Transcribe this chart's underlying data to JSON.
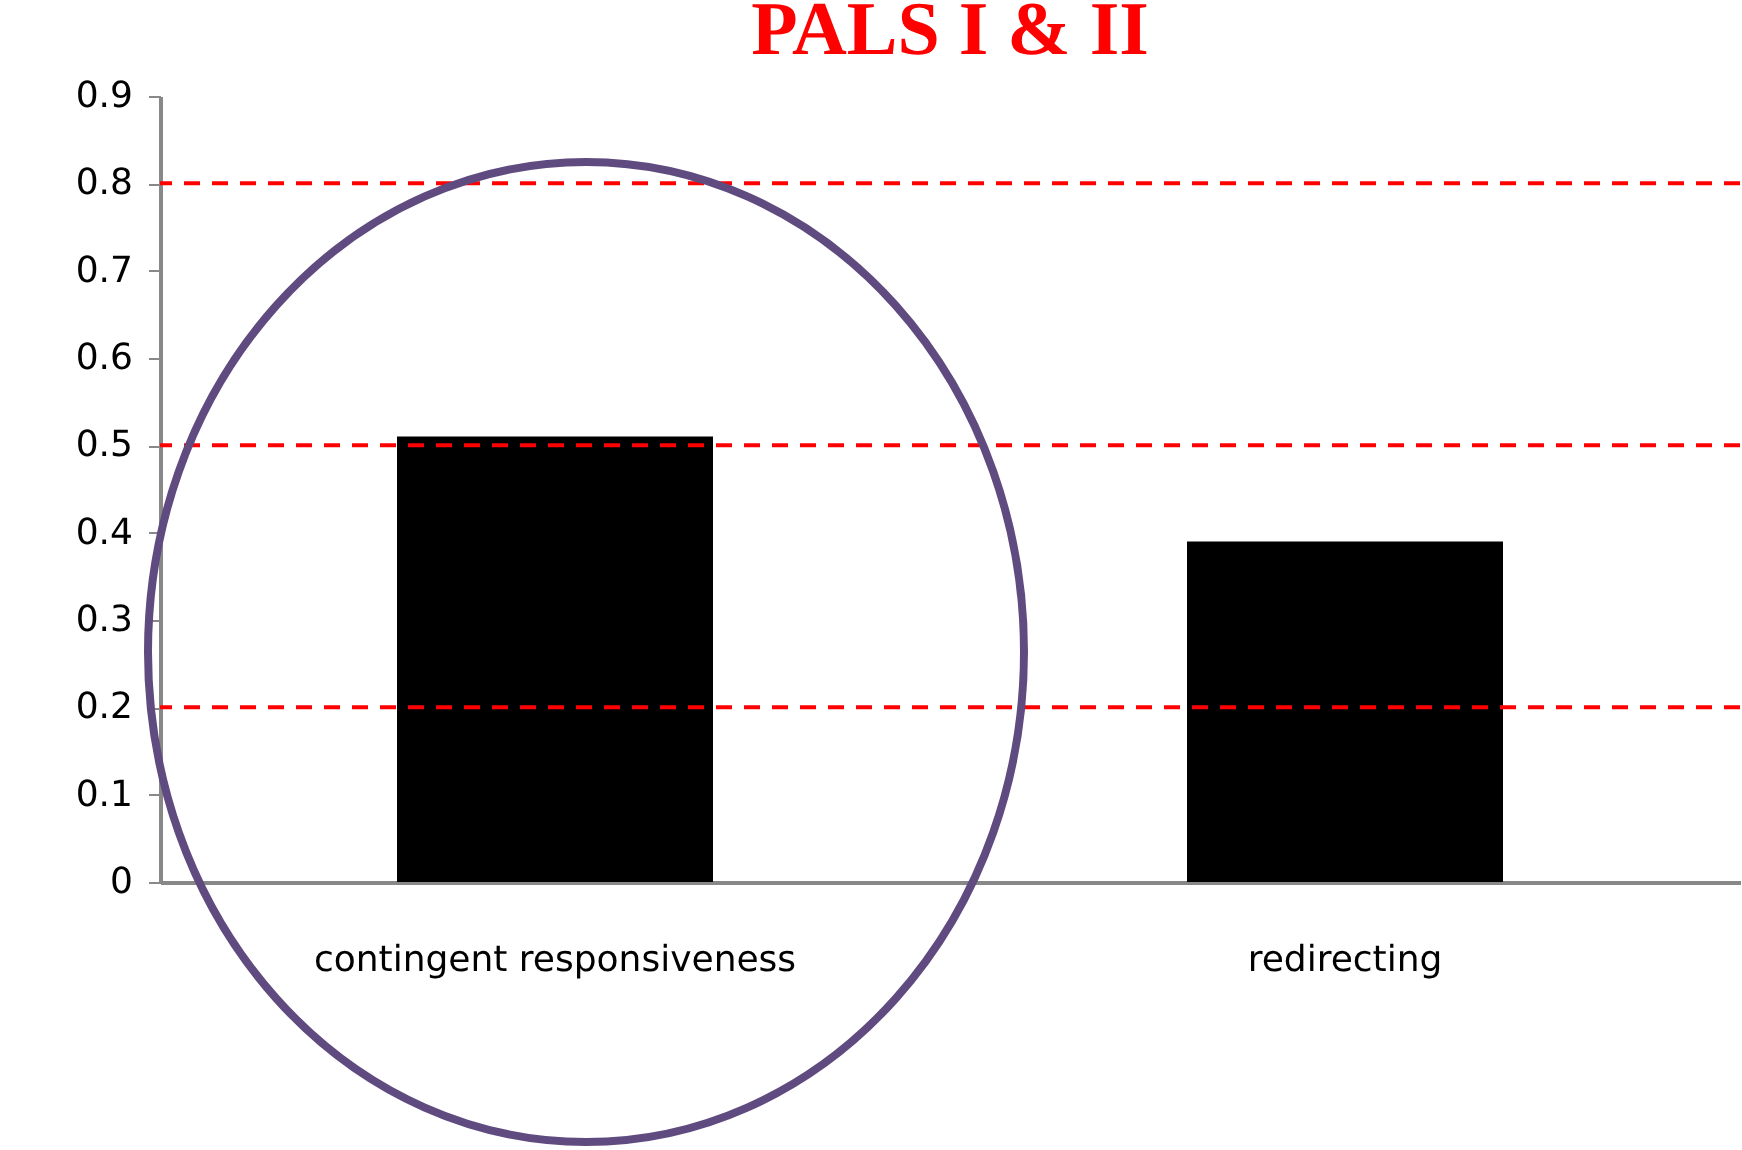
{
  "chart_data": {
    "type": "bar",
    "title": "PALS I & II",
    "categories": [
      "contingent responsiveness",
      "redirecting"
    ],
    "values": [
      0.51,
      0.39
    ],
    "color": "#000000",
    "ylim": [
      0,
      0.9
    ],
    "yticks": [
      0,
      0.1,
      0.2,
      0.3,
      0.4,
      0.5,
      0.6,
      0.7,
      0.8,
      0.9
    ],
    "grid": false,
    "ref_lines": [
      {
        "axis": "y",
        "value": 0.8,
        "color": "#ff0000",
        "line_style": "dashed"
      },
      {
        "axis": "y",
        "value": 0.5,
        "color": "#ff0000",
        "line_style": "dashed"
      },
      {
        "axis": "y",
        "value": 0.2,
        "color": "#ff0000",
        "line_style": "dashed"
      }
    ]
  }
}
